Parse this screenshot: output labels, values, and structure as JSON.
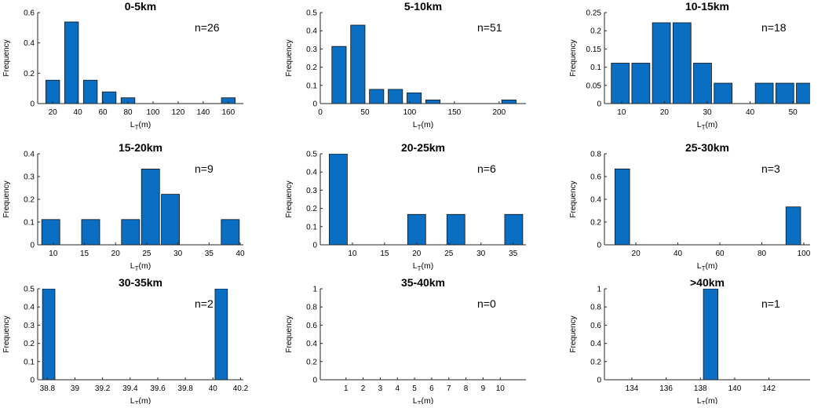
{
  "colors": {
    "bar_fill": "#0a6fc2",
    "bar_edge": "#111111",
    "axis": "#262626",
    "text": "#000000"
  },
  "chart_data": [
    {
      "type": "bar",
      "title": "0-5km",
      "annotation": "n=26",
      "xlabel": "L",
      "xlabel_sub": "T",
      "xlabel_unit": "(m)",
      "ylabel": "Frequency",
      "xlim": [
        8,
        172
      ],
      "ylim": [
        0,
        0.6
      ],
      "bar_width": 11,
      "xticks": [
        20,
        40,
        60,
        80,
        100,
        120,
        140,
        160
      ],
      "yticks": [
        0,
        0.2,
        0.4,
        0.6
      ],
      "yticklabels": [
        "0",
        "0.2",
        "0.4",
        "0.6"
      ],
      "bars": [
        {
          "x": 20,
          "y": 0.154
        },
        {
          "x": 35,
          "y": 0.538
        },
        {
          "x": 50,
          "y": 0.154
        },
        {
          "x": 65,
          "y": 0.077
        },
        {
          "x": 80,
          "y": 0.038
        },
        {
          "x": 160,
          "y": 0.038
        }
      ]
    },
    {
      "type": "bar",
      "title": "5-10km",
      "annotation": "n=51",
      "xlabel": "L",
      "xlabel_sub": "T",
      "xlabel_unit": "(m)",
      "ylabel": "Frequency",
      "xlim": [
        0,
        230
      ],
      "ylim": [
        0,
        0.5
      ],
      "bar_width": 16,
      "xticks": [
        0,
        50,
        100,
        150,
        200
      ],
      "yticks": [
        0,
        0.1,
        0.2,
        0.3,
        0.4,
        0.5
      ],
      "yticklabels": [
        "0",
        "0.1",
        "0.2",
        "0.3",
        "0.4",
        "0.5"
      ],
      "bars": [
        {
          "x": 21,
          "y": 0.314
        },
        {
          "x": 42,
          "y": 0.431
        },
        {
          "x": 63,
          "y": 0.078
        },
        {
          "x": 84,
          "y": 0.078
        },
        {
          "x": 105,
          "y": 0.059
        },
        {
          "x": 126,
          "y": 0.02
        },
        {
          "x": 211,
          "y": 0.02
        }
      ]
    },
    {
      "type": "bar",
      "title": "10-15km",
      "annotation": "n=18",
      "xlabel": "L",
      "xlabel_sub": "T",
      "xlabel_unit": "(m)",
      "ylabel": "Frequency",
      "xlim": [
        6,
        54
      ],
      "ylim": [
        0,
        0.25
      ],
      "bar_width": 4.2,
      "xticks": [
        10,
        20,
        30,
        40,
        50
      ],
      "yticks": [
        0,
        0.05,
        0.1,
        0.15,
        0.2,
        0.25
      ],
      "yticklabels": [
        "0",
        "0.05",
        "0.1",
        "0.15",
        "0.2",
        "0.25"
      ],
      "bars": [
        {
          "x": 9.7,
          "y": 0.111
        },
        {
          "x": 14.5,
          "y": 0.111
        },
        {
          "x": 19.3,
          "y": 0.222
        },
        {
          "x": 24.1,
          "y": 0.222
        },
        {
          "x": 28.9,
          "y": 0.111
        },
        {
          "x": 33.7,
          "y": 0.056
        },
        {
          "x": 43.3,
          "y": 0.056
        },
        {
          "x": 48.1,
          "y": 0.056
        },
        {
          "x": 52.9,
          "y": 0.056
        }
      ]
    },
    {
      "type": "bar",
      "title": "15-20km",
      "annotation": "n=9",
      "xlabel": "L",
      "xlabel_sub": "T",
      "xlabel_unit": "(m)",
      "ylabel": "Frequency",
      "xlim": [
        7.5,
        40.5
      ],
      "ylim": [
        0,
        0.4
      ],
      "bar_width": 2.9,
      "xticks": [
        10,
        15,
        20,
        25,
        30,
        35,
        40
      ],
      "yticks": [
        0,
        0.1,
        0.2,
        0.3,
        0.4
      ],
      "yticklabels": [
        "0",
        "0.1",
        "0.2",
        "0.3",
        "0.4"
      ],
      "bars": [
        {
          "x": 9.6,
          "y": 0.111
        },
        {
          "x": 16.0,
          "y": 0.111
        },
        {
          "x": 22.4,
          "y": 0.111
        },
        {
          "x": 25.6,
          "y": 0.333
        },
        {
          "x": 28.8,
          "y": 0.222
        },
        {
          "x": 38.4,
          "y": 0.111
        }
      ]
    },
    {
      "type": "bar",
      "title": "20-25km",
      "annotation": "n=6",
      "xlabel": "L",
      "xlabel_sub": "T",
      "xlabel_unit": "(m)",
      "ylabel": "Frequency",
      "xlim": [
        5,
        37
      ],
      "ylim": [
        0,
        0.5
      ],
      "bar_width": 2.8,
      "xticks": [
        10,
        15,
        20,
        25,
        30,
        35
      ],
      "yticks": [
        0,
        0.1,
        0.2,
        0.3,
        0.4,
        0.5
      ],
      "yticklabels": [
        "0",
        "0.1",
        "0.2",
        "0.3",
        "0.4",
        "0.5"
      ],
      "bars": [
        {
          "x": 7.8,
          "y": 0.5
        },
        {
          "x": 20.0,
          "y": 0.167
        },
        {
          "x": 26.1,
          "y": 0.167
        },
        {
          "x": 35.1,
          "y": 0.167
        }
      ]
    },
    {
      "type": "bar",
      "title": "25-30km",
      "annotation": "n=3",
      "xlabel": "L",
      "xlabel_sub": "T",
      "xlabel_unit": "(m)",
      "ylabel": "Frequency",
      "xlim": [
        5,
        103
      ],
      "ylim": [
        0,
        0.8
      ],
      "bar_width": 7,
      "xticks": [
        20,
        40,
        60,
        80,
        100
      ],
      "yticks": [
        0,
        0.2,
        0.4,
        0.6,
        0.8
      ],
      "yticklabels": [
        "0",
        "0.2",
        "0.4",
        "0.6",
        "0.8"
      ],
      "bars": [
        {
          "x": 13.5,
          "y": 0.667
        },
        {
          "x": 95,
          "y": 0.333
        }
      ]
    },
    {
      "type": "bar",
      "title": "30-35km",
      "annotation": "n=2",
      "xlabel": "L",
      "xlabel_sub": "T",
      "xlabel_unit": "(m)",
      "ylabel": "Frequency",
      "xlim": [
        38.73,
        40.22
      ],
      "ylim": [
        0,
        0.5
      ],
      "bar_width": 0.09,
      "xticks": [
        38.8,
        39,
        39.2,
        39.4,
        39.6,
        39.8,
        40,
        40.2
      ],
      "yticks": [
        0,
        0.1,
        0.2,
        0.3,
        0.4,
        0.5
      ],
      "yticklabels": [
        "0",
        "0.1",
        "0.2",
        "0.3",
        "0.4",
        "0.5"
      ],
      "bars": [
        {
          "x": 38.81,
          "y": 0.5
        },
        {
          "x": 40.06,
          "y": 0.5
        }
      ]
    },
    {
      "type": "bar",
      "title": "35-40km",
      "annotation": "n=0",
      "xlabel": "L",
      "xlabel_sub": "T",
      "xlabel_unit": "(m)",
      "ylabel": "Frequency",
      "xlim": [
        -0.5,
        11.5
      ],
      "ylim": [
        0,
        1
      ],
      "bar_width": 0.8,
      "xticks": [
        1,
        2,
        3,
        4,
        5,
        6,
        7,
        8,
        9,
        10
      ],
      "yticks": [
        0,
        0.2,
        0.4,
        0.6,
        0.8,
        1
      ],
      "yticklabels": [
        "0",
        "0.2",
        "0.4",
        "0.6",
        "0.8",
        "1"
      ],
      "bars": []
    },
    {
      "type": "bar",
      "title": ">40km",
      "annotation": "n=1",
      "xlabel": "L",
      "xlabel_sub": "T",
      "xlabel_unit": "(m)",
      "ylabel": "Frequency",
      "xlim": [
        132.4,
        144.4
      ],
      "ylim": [
        0,
        1
      ],
      "bar_width": 0.85,
      "xticks": [
        134,
        136,
        138,
        140,
        142
      ],
      "yticks": [
        0,
        0.2,
        0.4,
        0.6,
        0.8,
        1
      ],
      "yticklabels": [
        "0",
        "0.2",
        "0.4",
        "0.6",
        "0.8",
        "1"
      ],
      "bars": [
        {
          "x": 138.6,
          "y": 1
        }
      ]
    }
  ]
}
